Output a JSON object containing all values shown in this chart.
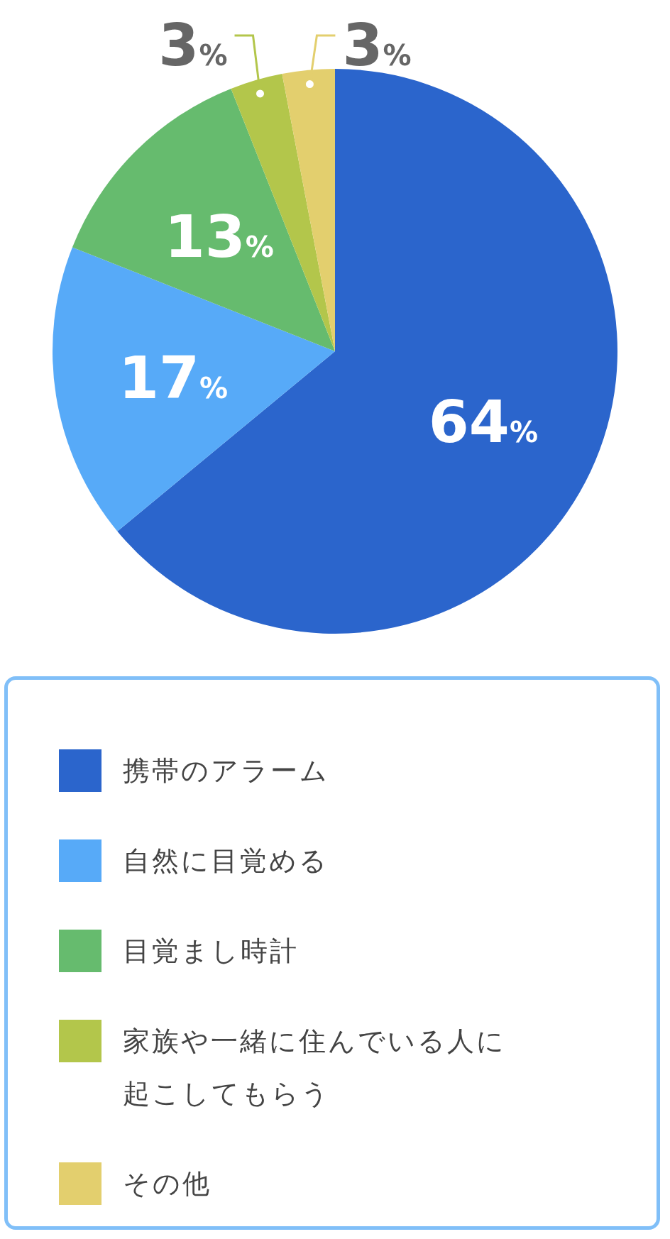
{
  "chart_data": {
    "type": "pie",
    "categories": [
      "携帯のアラーム",
      "自然に目覚める",
      "目覚まし時計",
      "家族や一緒に住んでいる人に起こしてもらう",
      "その他"
    ],
    "values": [
      64,
      17,
      13,
      3,
      3
    ],
    "colors": [
      "#2b65cc",
      "#57aaf8",
      "#66bb6e",
      "#b3c64b",
      "#e3cf6e"
    ],
    "value_labels": [
      "64%",
      "17%",
      "13%",
      "3%",
      "3%"
    ],
    "legend": "bottom"
  }
}
